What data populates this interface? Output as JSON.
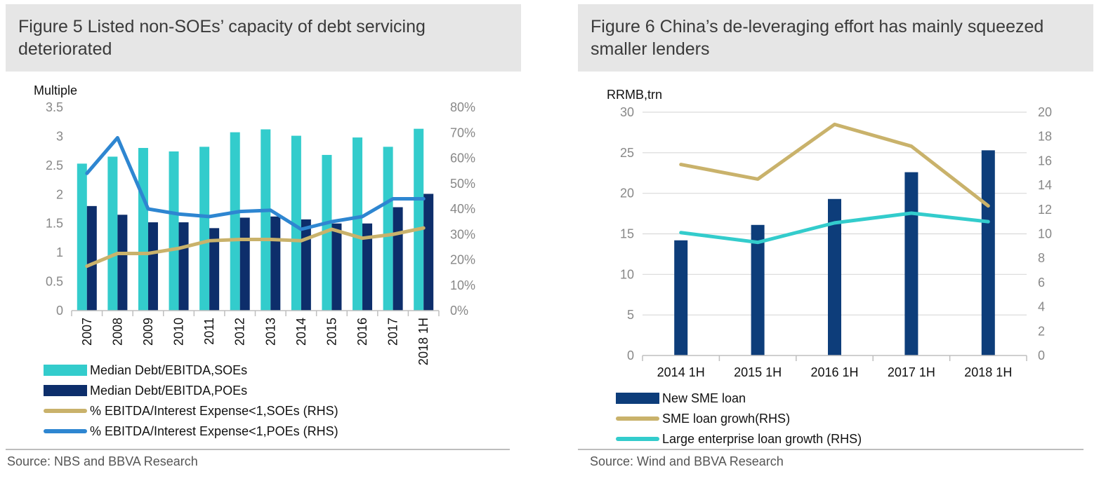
{
  "left": {
    "title": "Figure 5 Listed non-SOEs’ capacity of debt servicing deteriorated",
    "source": "Source: NBS and BBVA Research",
    "legend": [
      {
        "label": "Median Debt/EBITDA,SOEs",
        "kind": "bar",
        "color": "#33cccc"
      },
      {
        "label": "Median Debt/EBITDA,POEs",
        "kind": "bar",
        "color": "#0d2e6b"
      },
      {
        "label": "% EBITDA/Interest Expense<1,SOEs (RHS)",
        "kind": "line",
        "color": "#c9b26b"
      },
      {
        "label": "% EBITDA/Interest Expense<1,POEs (RHS)",
        "kind": "line",
        "color": "#2e86d1"
      }
    ]
  },
  "right": {
    "title": "Figure 6 China’s de-leveraging effort has mainly squeezed smaller lenders",
    "source": "Source: Wind and BBVA Research",
    "legend": [
      {
        "label": "New SME loan",
        "kind": "bar",
        "color": "#0d3d7a"
      },
      {
        "label": "SME loan growh(RHS)",
        "kind": "line",
        "color": "#c9b26b"
      },
      {
        "label": "Large enterprise loan growth (RHS)",
        "kind": "line",
        "color": "#33cccc"
      }
    ]
  },
  "chart_data": [
    {
      "type": "bar",
      "title": "Figure 5 Listed non-SOEs’ capacity of debt servicing deteriorated",
      "ylabel": "Multiple",
      "categories": [
        "2007",
        "2008",
        "2009",
        "2010",
        "2011",
        "2012",
        "2013",
        "2014",
        "2015",
        "2016",
        "2017",
        "2018 1H"
      ],
      "ylim": [
        0,
        3.5
      ],
      "yticks": [
        "0",
        "0.5",
        "1",
        "1.5",
        "2",
        "2.5",
        "3",
        "3.5"
      ],
      "y2lim": [
        0,
        80
      ],
      "y2ticks": [
        "0%",
        "10%",
        "20%",
        "30%",
        "40%",
        "50%",
        "60%",
        "70%",
        "80%"
      ],
      "series": [
        {
          "name": "Median Debt/EBITDA,SOEs",
          "type": "bar",
          "axis": "left",
          "color": "#33cccc",
          "values": [
            2.53,
            2.65,
            2.8,
            2.74,
            2.82,
            3.07,
            3.12,
            3.01,
            2.68,
            2.98,
            2.82,
            3.13
          ]
        },
        {
          "name": "Median Debt/EBITDA,POEs",
          "type": "bar",
          "axis": "left",
          "color": "#0d2e6b",
          "values": [
            1.8,
            1.65,
            1.52,
            1.52,
            1.42,
            1.6,
            1.62,
            1.57,
            1.5,
            1.5,
            1.78,
            2.01
          ]
        },
        {
          "name": "% EBITDA/Interest Expense<1,SOEs (RHS)",
          "type": "line",
          "axis": "right",
          "color": "#c9b26b",
          "values": [
            17.5,
            22.5,
            22.5,
            24.5,
            27.5,
            28.0,
            28.0,
            27.5,
            32.0,
            28.5,
            30.0,
            32.5
          ]
        },
        {
          "name": "% EBITDA/Interest Expense<1,POEs (RHS)",
          "type": "line",
          "axis": "right",
          "color": "#2e86d1",
          "values": [
            54.0,
            68.0,
            40.0,
            38.0,
            37.0,
            39.0,
            39.5,
            32.0,
            35.0,
            37.0,
            44.0,
            44.0
          ]
        }
      ]
    },
    {
      "type": "bar",
      "title": "Figure 6 China’s de-leveraging effort has mainly squeezed smaller lenders",
      "ylabel": "RRMB,trn",
      "categories": [
        "2014 1H",
        "2015 1H",
        "2016 1H",
        "2017 1H",
        "2018 1H"
      ],
      "ylim": [
        0,
        30
      ],
      "yticks": [
        "0",
        "5",
        "10",
        "15",
        "20",
        "25",
        "30"
      ],
      "y2lim": [
        0,
        20
      ],
      "y2ticks": [
        "0",
        "2",
        "4",
        "6",
        "8",
        "10",
        "12",
        "14",
        "16",
        "18",
        "20"
      ],
      "series": [
        {
          "name": "New SME loan",
          "type": "bar",
          "axis": "left",
          "color": "#0d3d7a",
          "values": [
            14.2,
            16.1,
            19.3,
            22.6,
            25.3
          ]
        },
        {
          "name": "SME loan growh(RHS)",
          "type": "line",
          "axis": "right",
          "color": "#c9b26b",
          "values": [
            15.7,
            14.5,
            19.0,
            17.2,
            12.3
          ]
        },
        {
          "name": "Large enterprise loan growth (RHS)",
          "type": "line",
          "axis": "right",
          "color": "#33cccc",
          "values": [
            10.1,
            9.3,
            10.9,
            11.7,
            11.0
          ]
        }
      ]
    }
  ]
}
